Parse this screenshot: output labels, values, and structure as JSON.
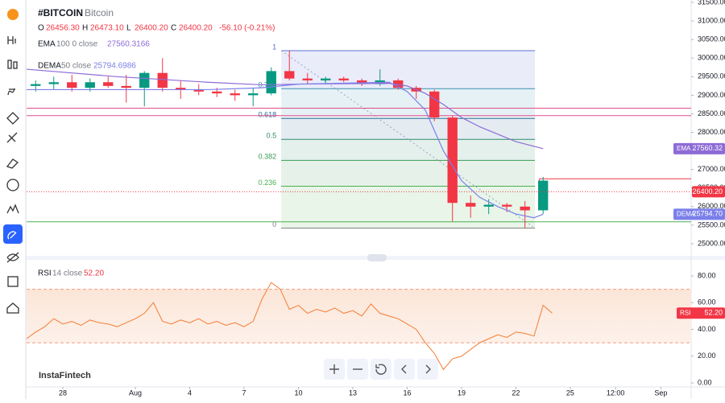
{
  "chart_data": [
    {
      "type": "candlestick",
      "title": "#BITCOIN",
      "subtitle": "Bitcoin",
      "readout": [
        [
          "O",
          "26456.30"
        ],
        [
          "H",
          "26473.10"
        ],
        [
          "L",
          "26400.20"
        ],
        [
          "C",
          "26400.20"
        ]
      ],
      "change": "-56.10 (-0.21%)",
      "xlim": [
        -5,
        31.67
      ],
      "ylim": [
        24675,
        31565
      ],
      "yticks": [
        {
          "value": 25000,
          "label": "25000.00"
        },
        {
          "value": 25500,
          "label": "25500.00"
        },
        {
          "value": 26000,
          "label": "26000.00"
        },
        {
          "value": 26500,
          "label": "26500.00"
        },
        {
          "value": 27000,
          "label": "27000.00"
        },
        {
          "value": 27500,
          "label": "27500.00"
        },
        {
          "value": 28000,
          "label": "28000.00"
        },
        {
          "value": 28500,
          "label": "28500.00"
        },
        {
          "value": 29000,
          "label": "29000.00"
        },
        {
          "value": 29500,
          "label": "29500.00"
        },
        {
          "value": 30000,
          "label": "30000.00"
        },
        {
          "value": 30500,
          "label": "30500.00"
        },
        {
          "value": 31000,
          "label": "31000.00"
        },
        {
          "value": 31500,
          "label": "31500.00"
        }
      ],
      "up_color": "#089981",
      "down_color": "#f23645",
      "candles": {
        "x": [
          -4.5,
          -3.5,
          -2.5,
          -1.5,
          -0.5,
          0.5,
          1.5,
          2.5,
          3.5,
          4.5,
          5.5,
          6.5,
          7.5,
          8.5,
          9.5,
          10.5,
          11.5,
          12.5,
          13.5,
          14.5,
          15.5,
          16.5,
          17.5,
          18.5,
          19.5,
          20.5,
          21.5,
          22.5,
          23.5
        ],
        "open": [
          29250,
          29300,
          29350,
          29200,
          29350,
          29250,
          29200,
          29600,
          29200,
          29150,
          29100,
          29050,
          29000,
          29050,
          29650,
          29450,
          29400,
          29450,
          29400,
          29300,
          29400,
          29200,
          29100,
          28400,
          26100,
          26000,
          26050,
          26000,
          25900
        ],
        "high": [
          29400,
          29500,
          29550,
          29450,
          29500,
          29550,
          29650,
          30000,
          29400,
          29300,
          29200,
          29150,
          29200,
          29750,
          30200,
          29600,
          29500,
          29500,
          29450,
          29700,
          29450,
          29250,
          29150,
          28450,
          26300,
          26200,
          26100,
          26150,
          26800
        ],
        "low": [
          29100,
          29150,
          29100,
          29100,
          29200,
          28800,
          28700,
          29100,
          28900,
          29000,
          28950,
          28850,
          28700,
          29000,
          29400,
          29300,
          29300,
          29350,
          29250,
          29250,
          29150,
          28900,
          28300,
          25600,
          25700,
          25800,
          25850,
          25420,
          25800
        ],
        "close": [
          29300,
          29350,
          29200,
          29350,
          29250,
          29200,
          29600,
          29200,
          29150,
          29100,
          29050,
          29000,
          29050,
          29650,
          29450,
          29400,
          29450,
          29400,
          29300,
          29400,
          29200,
          29100,
          28400,
          26100,
          26000,
          26050,
          26000,
          25900,
          26700
        ]
      },
      "series": [
        {
          "name": "EMA",
          "params": "100  0  close",
          "last": "27560.3166",
          "tag": "27560.32",
          "color": "#8e6bd6",
          "x": [
            -5,
            0,
            5,
            8,
            10,
            15,
            16,
            17,
            18,
            19,
            20,
            21,
            22,
            23.5
          ],
          "values": [
            29700,
            29500,
            29350,
            29280,
            29300,
            29320,
            29250,
            29050,
            28750,
            28400,
            28150,
            27950,
            27750,
            27560.3166
          ]
        },
        {
          "name": "DEMA",
          "params": "50  close",
          "last": "25794.6986",
          "tag": "25794.70",
          "color": "#7b7fea",
          "x": [
            -5,
            0,
            5,
            8,
            10,
            15,
            16,
            17,
            18,
            19,
            20,
            21,
            22,
            23,
            23.5
          ],
          "values": [
            29150,
            29150,
            29150,
            29200,
            29300,
            29350,
            29100,
            28600,
            27500,
            26700,
            26250,
            26000,
            25800,
            25700,
            25794.6986
          ]
        }
      ],
      "fib": {
        "x": [
          9.05,
          23.05
        ],
        "levels": [
          {
            "label": "1",
            "value": 30200,
            "color": "#5b6fd6"
          },
          {
            "label": "0.786",
            "value": 29177,
            "color": "#3a8fb0"
          },
          {
            "label": "0.618",
            "value": 28374,
            "color": "#2d6f9a"
          },
          {
            "label": "0.5",
            "value": 27810,
            "color": "#2e8b6a"
          },
          {
            "label": "0.382",
            "value": 27246,
            "color": "#3a9a55"
          },
          {
            "label": "0.236",
            "value": 26548,
            "color": "#4caf50"
          },
          {
            "label": "0",
            "value": 25420,
            "color": "#808080"
          }
        ]
      },
      "levels": [
        {
          "value": 28650,
          "color": "#e04f8a"
        },
        {
          "value": 28450,
          "color": "#e04f8a"
        },
        {
          "value": 25590,
          "color": "#4caf50"
        }
      ],
      "high_line": {
        "x": 23.3,
        "value": 26750,
        "color": "#f23645"
      },
      "last_price": 26400.2,
      "last_price_tag": "26400.20"
    },
    {
      "type": "line",
      "name": "RSI",
      "params": "14  close",
      "last": "52.20",
      "color": "#f57c34",
      "xlim": [
        -5,
        31.67
      ],
      "ylim": [
        -2.4,
        90.8
      ],
      "yticks": [
        {
          "value": 0,
          "label": "0.00"
        },
        {
          "value": 20,
          "label": "20.00"
        },
        {
          "value": 40,
          "label": "40.00"
        },
        {
          "value": 60,
          "label": "60.00"
        },
        {
          "value": 80,
          "label": "80.00"
        }
      ],
      "bands": [
        30,
        70
      ],
      "xticks": [
        {
          "value": -3,
          "label": "28"
        },
        {
          "value": 1,
          "label": "Aug"
        },
        4,
        7,
        10,
        13,
        16,
        19,
        22,
        25,
        {
          "value": 27.5,
          "label": "12:00"
        },
        {
          "value": 30,
          "label": "Sep"
        }
      ],
      "x": [
        -5,
        -4.5,
        -4,
        -3.5,
        -3,
        -2.5,
        -2,
        -1.5,
        -1,
        -0.5,
        0,
        0.5,
        1,
        1.5,
        2,
        2.5,
        3,
        3.5,
        4,
        4.5,
        5,
        5.5,
        6,
        6.5,
        7,
        7.5,
        8,
        8.5,
        9,
        9.5,
        10,
        10.5,
        11,
        11.5,
        12,
        12.5,
        13,
        13.5,
        14,
        14.5,
        15,
        15.5,
        16,
        16.5,
        17,
        17.5,
        18,
        18.5,
        19,
        19.5,
        20,
        20.5,
        21,
        21.5,
        22,
        22.5,
        23,
        23.5,
        24
      ],
      "values": [
        33,
        38,
        42,
        48,
        44,
        46,
        43,
        47,
        45,
        44,
        42,
        45,
        48,
        52,
        60,
        46,
        44,
        47,
        45,
        48,
        44,
        46,
        43,
        45,
        42,
        46,
        63,
        75,
        70,
        55,
        58,
        52,
        55,
        53,
        56,
        52,
        54,
        50,
        59,
        52,
        50,
        48,
        44,
        40,
        30,
        22,
        10,
        18,
        20,
        25,
        30,
        33,
        36,
        34,
        38,
        37,
        35,
        58,
        52.2
      ]
    }
  ],
  "brand": "InstaFintech"
}
